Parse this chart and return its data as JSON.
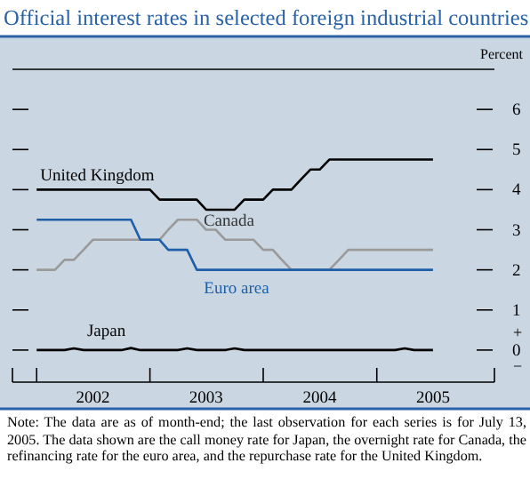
{
  "chart_data": {
    "type": "line",
    "title": "Official interest rates in selected foreign industrial countries",
    "ylabel": "Percent",
    "xlim": [
      "2001-10-15",
      "2006-01-15"
    ],
    "ylim": [
      -0.8,
      7
    ],
    "yticks": [
      0,
      1,
      2,
      3,
      4,
      5,
      6
    ],
    "xticks": [
      {
        "value": "2002-01-01",
        "label": null
      },
      {
        "value": "2002-07-01",
        "label": "2002"
      },
      {
        "value": "2003-01-01",
        "label": null
      },
      {
        "value": "2003-07-01",
        "label": "2003"
      },
      {
        "value": "2004-01-01",
        "label": null
      },
      {
        "value": "2004-07-01",
        "label": "2004"
      },
      {
        "value": "2005-01-01",
        "label": null
      },
      {
        "value": "2005-07-01",
        "label": "2005"
      }
    ],
    "grid": false,
    "marker": "none",
    "line_style": "solid",
    "series": [
      {
        "name": "United Kingdom",
        "color": "#000000",
        "x": [
          "2002-01",
          "2003-01",
          "2003-02",
          "2003-06",
          "2003-07",
          "2003-10",
          "2003-11",
          "2004-01",
          "2004-02",
          "2004-04",
          "2004-05",
          "2004-06",
          "2004-07",
          "2004-08",
          "2005-07"
        ],
        "values": [
          4.0,
          4.0,
          3.75,
          3.75,
          3.5,
          3.5,
          3.75,
          3.75,
          4.0,
          4.0,
          4.25,
          4.5,
          4.5,
          4.75,
          4.75
        ]
      },
      {
        "name": "Canada",
        "color": "#9a9a9a",
        "x": [
          "2002-01",
          "2002-03",
          "2002-04",
          "2002-05",
          "2002-06",
          "2002-07",
          "2003-02",
          "2003-03",
          "2003-04",
          "2003-06",
          "2003-07",
          "2003-08",
          "2003-09",
          "2003-12",
          "2004-01",
          "2004-02",
          "2004-03",
          "2004-04",
          "2004-08",
          "2004-09",
          "2004-10",
          "2005-07"
        ],
        "values": [
          2.0,
          2.0,
          2.25,
          2.25,
          2.5,
          2.75,
          2.75,
          3.0,
          3.25,
          3.25,
          3.0,
          3.0,
          2.75,
          2.75,
          2.5,
          2.5,
          2.25,
          2.0,
          2.0,
          2.25,
          2.5,
          2.5
        ]
      },
      {
        "name": "Euro area",
        "color": "#1f5fa8",
        "x": [
          "2002-01",
          "2002-11",
          "2002-12",
          "2003-02",
          "2003-03",
          "2003-05",
          "2003-06",
          "2005-07"
        ],
        "values": [
          3.25,
          3.25,
          2.75,
          2.75,
          2.5,
          2.5,
          2.0,
          2.0
        ]
      },
      {
        "name": "Japan",
        "color": "#000000",
        "x": [
          "2002-01",
          "2002-04",
          "2002-05",
          "2002-06",
          "2002-10",
          "2002-11",
          "2002-12",
          "2003-04",
          "2003-05",
          "2003-06",
          "2003-09",
          "2003-10",
          "2003-11",
          "2005-03",
          "2005-04",
          "2005-05",
          "2005-07"
        ],
        "values": [
          0,
          0,
          0.04,
          0,
          0,
          0.05,
          0,
          0,
          0.04,
          0,
          0,
          0.04,
          0,
          0,
          0.04,
          0,
          0
        ]
      }
    ],
    "annotations": [
      "+",
      "−",
      "Note: The data are as of month-end; the last observation for each series is for July 13, 2005. The data shown are the call money rate for Japan, the overnight rate for Canada, the refinancing rate for the euro area, and the repurchase rate for the United Kingdom."
    ]
  }
}
